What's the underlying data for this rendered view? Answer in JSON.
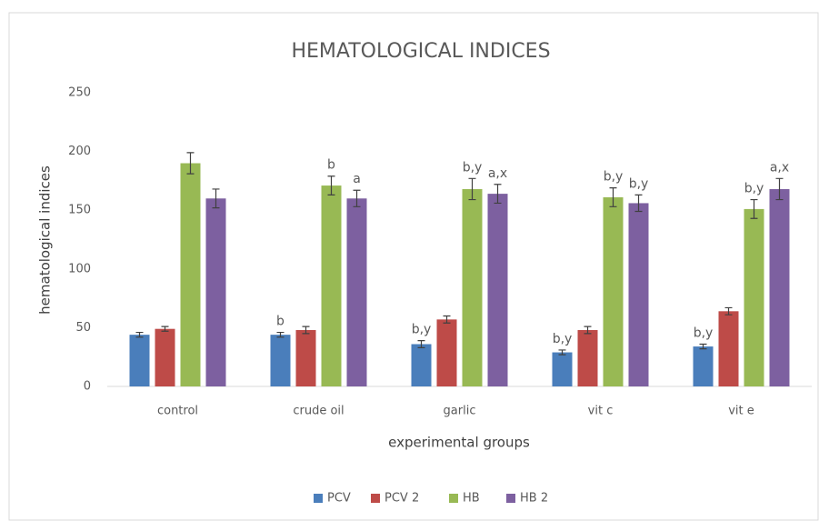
{
  "chart_data": {
    "type": "bar",
    "title": "HEMATOLOGICAL  INDICES",
    "x_label": "experimental groups",
    "y_label": "hematological indices",
    "categories": [
      "control",
      "crude oil",
      "garlic",
      "vit c",
      "vit e"
    ],
    "series": [
      {
        "name": "PCV",
        "color": "#4a7ebb",
        "values": [
          44,
          44,
          36,
          29,
          34
        ],
        "errors": [
          2,
          2,
          3,
          2,
          2
        ],
        "annotations": [
          null,
          "b",
          "b,y",
          "b,y",
          "b,y"
        ]
      },
      {
        "name": "PCV 2",
        "color": "#be4b48",
        "values": [
          49,
          48,
          57,
          48,
          64
        ],
        "errors": [
          2,
          3,
          3,
          3,
          3
        ],
        "annotations": [
          null,
          null,
          null,
          null,
          null
        ]
      },
      {
        "name": "HB",
        "color": "#98b954",
        "values": [
          190,
          171,
          168,
          161,
          151
        ],
        "errors": [
          9,
          8,
          9,
          8,
          8
        ],
        "annotations": [
          null,
          "b",
          "b,y",
          "b,y",
          "b,y"
        ]
      },
      {
        "name": "HB 2",
        "color": "#7d60a0",
        "values": [
          160,
          160,
          164,
          156,
          168
        ],
        "errors": [
          8,
          7,
          8,
          7,
          9
        ],
        "annotations": [
          null,
          "a",
          "a,x",
          "b,y",
          "a,x"
        ]
      }
    ],
    "ylim": [
      0,
      250
    ],
    "yticks": [
      0,
      50,
      100,
      150,
      200,
      250
    ],
    "grid": false,
    "legend": "bottom"
  }
}
